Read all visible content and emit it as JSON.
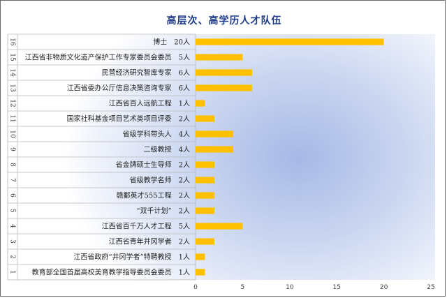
{
  "chart_data": {
    "type": "bar",
    "orientation": "horizontal",
    "title": "高层次、高学历人才队伍",
    "xlabel": "",
    "ylabel": "",
    "xlim": [
      0,
      25
    ],
    "x_ticks": [
      0,
      5,
      10,
      15,
      20,
      25
    ],
    "grid": false,
    "bar_color": "#FFC000",
    "rows": [
      {
        "index": "16",
        "label": "博士　20人",
        "value": 20
      },
      {
        "index": "15",
        "label": "江西省非物质文化遗产保护工作专家委员会委员　5人",
        "value": 5
      },
      {
        "index": "14",
        "label": "民营经济研究智库专家　6人",
        "value": 6
      },
      {
        "index": "13",
        "label": "江西省委办公厅信息决策咨询专家　6人",
        "value": 6
      },
      {
        "index": "12",
        "label": "江西省百人远航工程　1人",
        "value": 1
      },
      {
        "index": "11",
        "label": "国家社科基金项目艺术类项目评委　2人",
        "value": 2
      },
      {
        "index": "10",
        "label": "省级学科带头人　4人",
        "value": 4
      },
      {
        "index": "9",
        "label": "二级教授　4人",
        "value": 4
      },
      {
        "index": "8",
        "label": "省金牌硕士生导师　2人",
        "value": 2
      },
      {
        "index": "7",
        "label": "省级教学名师　2人",
        "value": 2
      },
      {
        "index": "6",
        "label": "赣鄱英才555工程　2人",
        "value": 2
      },
      {
        "index": "5",
        "label": "“双千计划”　2人",
        "value": 2
      },
      {
        "index": "4",
        "label": "江西省百千万人才工程　5人",
        "value": 5
      },
      {
        "index": "3",
        "label": "江西省青年井冈学者　2人",
        "value": 2
      },
      {
        "index": "2",
        "label": "江西省政府“井冈学者”特聘教授　1人",
        "value": 1
      },
      {
        "index": "1",
        "label": "教育部全国首届高校美育教学指导委员会委员　1人",
        "value": 1
      }
    ]
  }
}
